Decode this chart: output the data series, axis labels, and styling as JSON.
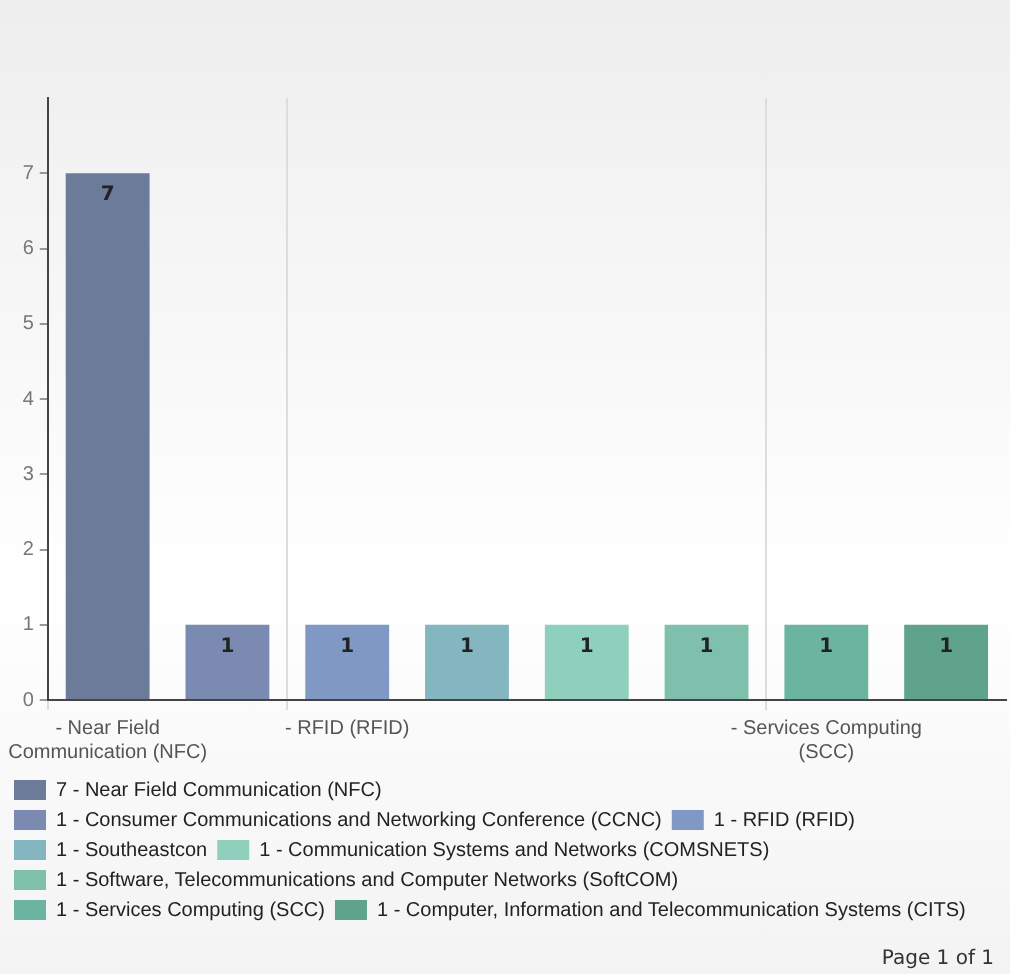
{
  "chart_data": {
    "type": "bar",
    "categories": [
      "- Near Field Communication (NFC)",
      null,
      "- RFID (RFID)",
      null,
      null,
      null,
      "- Services Computing (SCC)",
      null
    ],
    "series": [
      {
        "name": "7 - Near Field Communication (NFC)",
        "color": "#6b7b99",
        "values": [
          7,
          null,
          null,
          null,
          null,
          null,
          null,
          null
        ]
      },
      {
        "name": "1 - Consumer Communications and Networking Conference (CCNC)",
        "color": "#7a8ab0",
        "values": [
          null,
          1,
          null,
          null,
          null,
          null,
          null,
          null
        ]
      },
      {
        "name": "1 - RFID (RFID)",
        "color": "#7f98c4",
        "values": [
          null,
          null,
          1,
          null,
          null,
          null,
          null,
          null
        ]
      },
      {
        "name": "1 - Southeastcon",
        "color": "#84b6c0",
        "values": [
          null,
          null,
          null,
          1,
          null,
          null,
          null,
          null
        ]
      },
      {
        "name": "1 - Communication Systems and Networks (COMSNETS)",
        "color": "#8fd0bc",
        "values": [
          null,
          null,
          null,
          null,
          1,
          null,
          null,
          null
        ]
      },
      {
        "name": "1 - Software, Telecommunications and Computer Networks (SoftCOM)",
        "color": "#7fc0ac",
        "values": [
          null,
          null,
          null,
          null,
          null,
          1,
          null,
          null
        ]
      },
      {
        "name": "1 - Services Computing (SCC)",
        "color": "#6ab4a0",
        "values": [
          null,
          null,
          null,
          null,
          null,
          null,
          1,
          null
        ]
      },
      {
        "name": "1 - Computer, Information and Telecommunication Systems (CITS)",
        "color": "#5fa38c",
        "values": [
          null,
          null,
          null,
          null,
          null,
          null,
          null,
          1
        ]
      }
    ],
    "ylim": [
      0,
      8
    ],
    "yticks": [
      0,
      1,
      2,
      3,
      4,
      5,
      6,
      7
    ],
    "grid": "x",
    "legend": "bottom",
    "data_labels": true,
    "annotations": [
      "Page 1 of 1"
    ]
  }
}
